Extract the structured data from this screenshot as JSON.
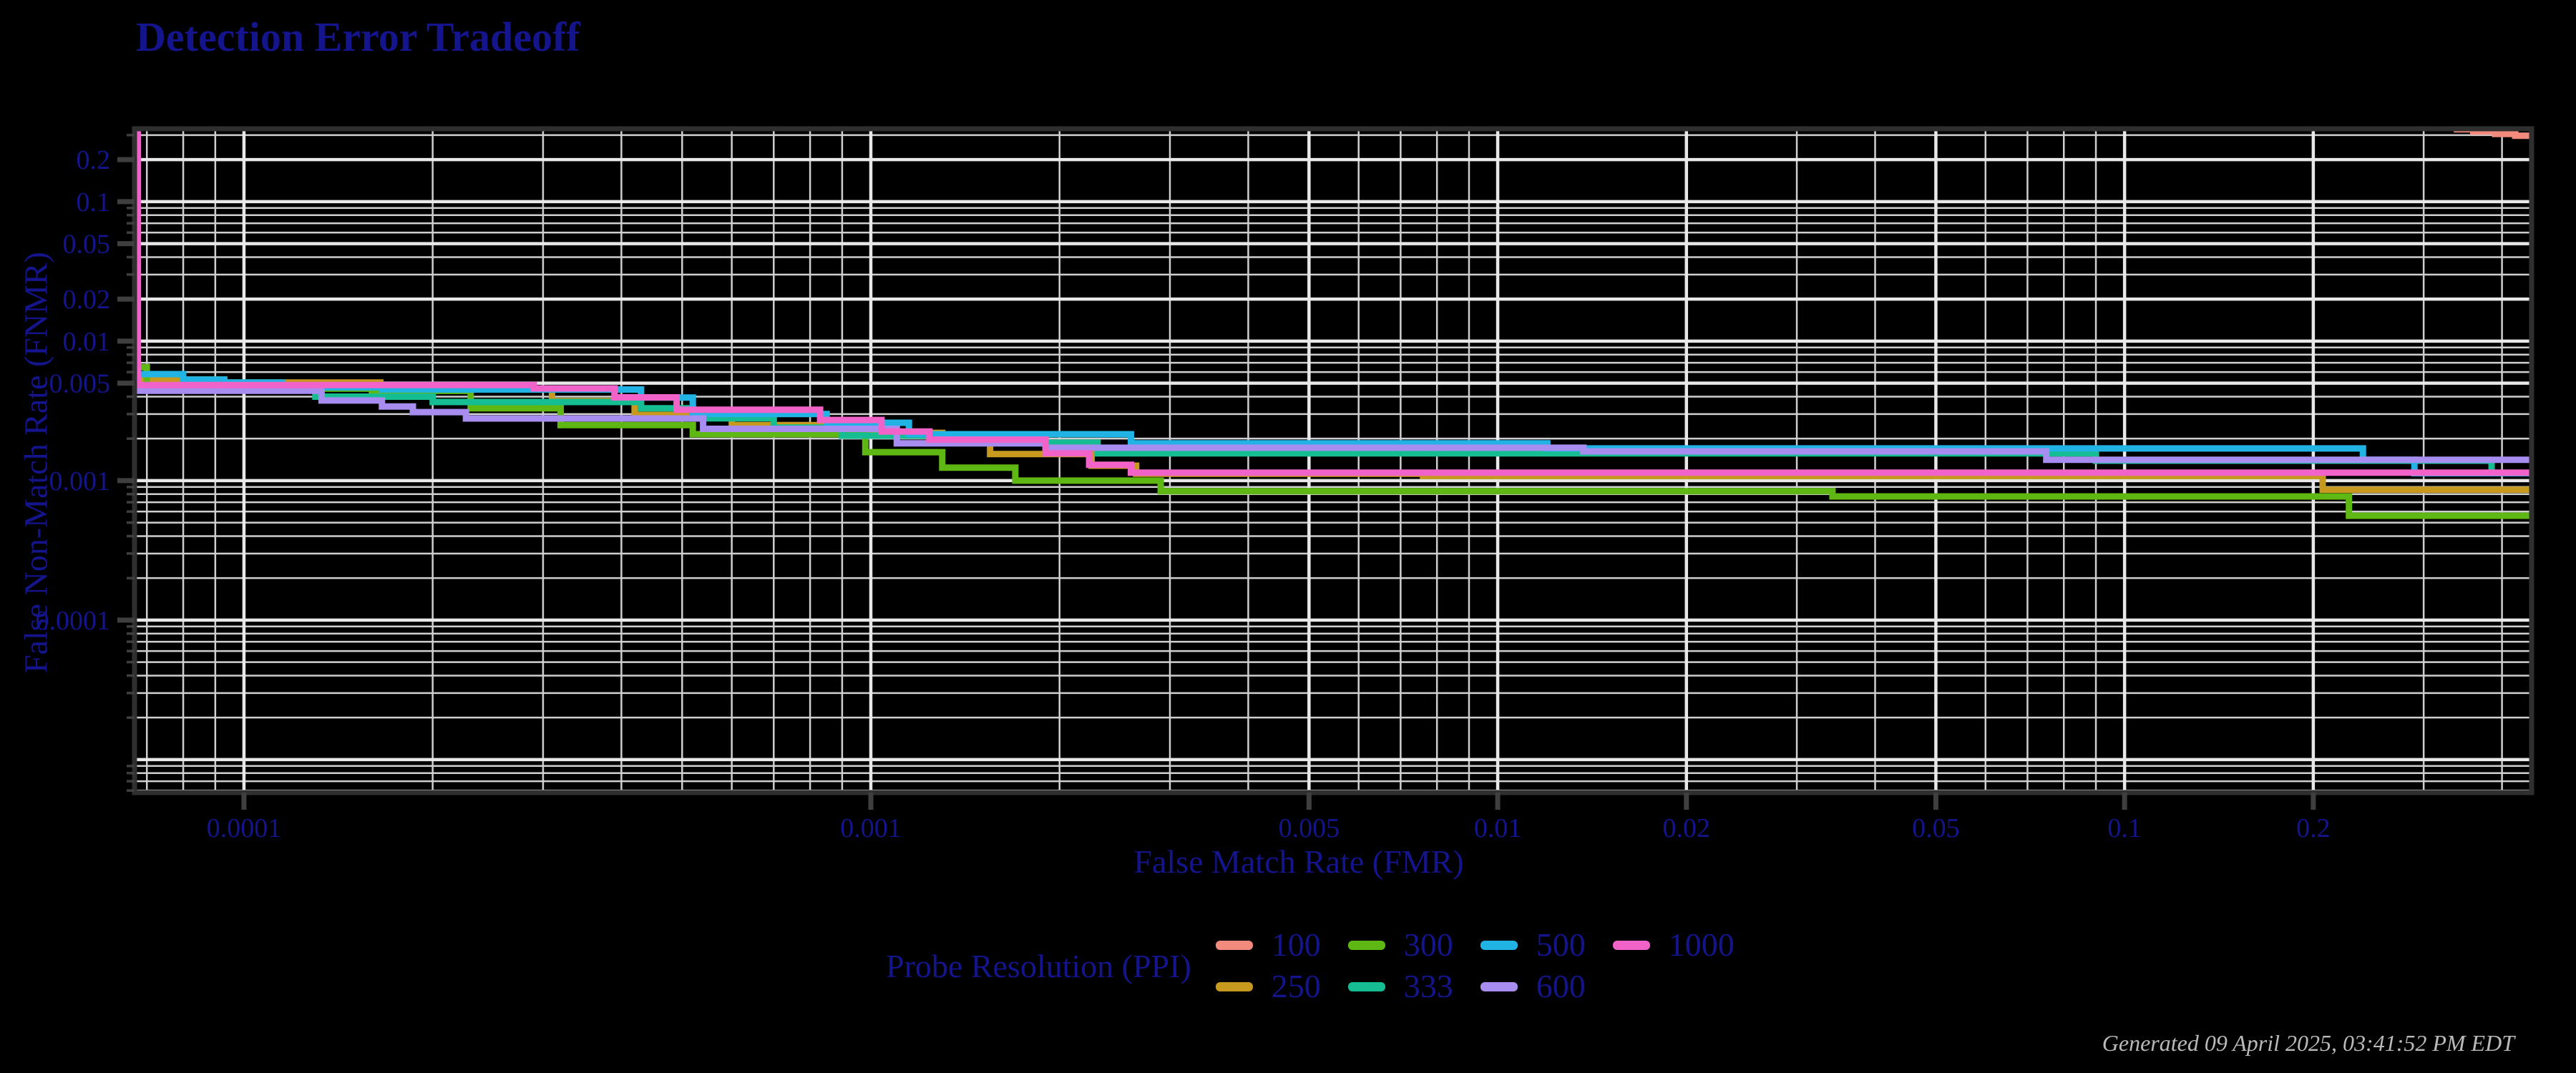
{
  "title": "Detection Error Tradeoff",
  "timestamp": "Generated 09 April 2025, 03:41:52 PM EDT",
  "colors": {
    "background": "#000000",
    "text_navy": "#14148C",
    "timestamp_gray": "#B9B9B9",
    "grid_minor": "#CFCFCF",
    "grid_major": "#E8E8E8",
    "spine": "#2F2F2F",
    "tick": "#3F3F3F"
  },
  "chart_data": {
    "type": "line",
    "subtype": "DET staircase (step-after)",
    "title": "Detection Error Tradeoff",
    "xlabel": "False Match Rate (FMR)",
    "ylabel": "False Non-Match Rate (FNMR)",
    "xscale": "log",
    "yscale": "log",
    "xlim": [
      6.69e-05,
      0.446
    ],
    "ylim": [
      5.8e-06,
      0.333
    ],
    "grid": "on (log minor + major), white gridlines on black",
    "legend_title": "Probe Resolution (PPI)",
    "legend_position": "below-plot-two-rows",
    "legend_rows": [
      [
        "100",
        "300",
        "500",
        "1000"
      ],
      [
        "250",
        "333",
        "600"
      ]
    ],
    "x_ticks": {
      "values": [
        0.0001,
        0.001,
        0.005,
        0.01,
        0.02,
        0.05,
        0.1,
        0.2
      ],
      "labels": [
        "0.0001",
        "0.001",
        "0.005",
        "0.01",
        "0.02",
        "0.05",
        "0.1",
        "0.2"
      ]
    },
    "y_ticks": {
      "values": [
        0.2,
        0.1,
        0.05,
        0.02,
        0.01,
        0.005,
        0.001,
        0.0001
      ],
      "labels": [
        "0.2",
        "0.1",
        "0.05",
        "0.02",
        "0.01",
        "0.005",
        "0.001",
        "0.0001"
      ]
    },
    "series": [
      {
        "name": "100",
        "color": "#F28B7D",
        "points": [
          [
            0.335,
            0.33
          ],
          [
            0.36,
            0.318
          ],
          [
            0.39,
            0.306
          ],
          [
            0.42,
            0.297
          ],
          [
            0.446,
            0.29
          ]
        ]
      },
      {
        "name": "250",
        "color": "#C7991F",
        "points": [
          [
            6.69e-05,
            0.0053
          ],
          [
            9.3e-05,
            0.00505
          ],
          [
            0.000165,
            0.00452
          ],
          [
            0.00031,
            0.00372
          ],
          [
            0.00042,
            0.00296
          ],
          [
            0.0006,
            0.0025
          ],
          [
            0.00099,
            0.0022
          ],
          [
            0.0013,
            0.0019
          ],
          [
            0.00155,
            0.00155
          ],
          [
            0.00225,
            0.00128
          ],
          [
            0.00265,
            0.00112
          ],
          [
            0.0076,
            0.00108
          ],
          [
            0.207,
            0.00086
          ]
        ]
      },
      {
        "name": "300",
        "color": "#5EB712",
        "points": [
          [
            6.69e-05,
            0.0065
          ],
          [
            7e-05,
            0.00457
          ],
          [
            0.00016,
            0.0044
          ],
          [
            0.00023,
            0.0033
          ],
          [
            0.00032,
            0.0025
          ],
          [
            0.00052,
            0.00215
          ],
          [
            0.00098,
            0.0016
          ],
          [
            0.0013,
            0.00124
          ],
          [
            0.0017,
            0.001
          ],
          [
            0.0029,
            0.00084
          ],
          [
            0.0342,
            0.00077
          ],
          [
            0.228,
            0.00056
          ]
        ]
      },
      {
        "name": "333",
        "color": "#16BD92",
        "points": [
          [
            6.69e-05,
            0.0047
          ],
          [
            0.00013,
            0.004
          ],
          [
            0.0002,
            0.00366
          ],
          [
            0.00043,
            0.0033
          ],
          [
            0.00052,
            0.0028
          ],
          [
            0.0007,
            0.0024
          ],
          [
            0.0009,
            0.0021
          ],
          [
            0.0019,
            0.00187
          ],
          [
            0.0023,
            0.00157
          ],
          [
            0.09,
            0.00139
          ],
          [
            0.385,
            0.00113
          ]
        ]
      },
      {
        "name": "500",
        "color": "#21B3E3",
        "points": [
          [
            6.69e-05,
            0.0058
          ],
          [
            8e-05,
            0.0053
          ],
          [
            9.3e-05,
            0.00505
          ],
          [
            0.000115,
            0.00466
          ],
          [
            0.000166,
            0.0045
          ],
          [
            0.00043,
            0.00394
          ],
          [
            0.00052,
            0.003
          ],
          [
            0.00085,
            0.0026
          ],
          [
            0.00115,
            0.00215
          ],
          [
            0.0026,
            0.00185
          ],
          [
            0.012,
            0.0017
          ],
          [
            0.24,
            0.00141
          ],
          [
            0.29,
            0.00113
          ]
        ]
      },
      {
        "name": "600",
        "color": "#A78DF0",
        "points": [
          [
            6.69e-05,
            0.00441
          ],
          [
            0.000133,
            0.00375
          ],
          [
            0.000166,
            0.0034
          ],
          [
            0.000186,
            0.0031
          ],
          [
            0.000226,
            0.00279
          ],
          [
            0.00054,
            0.00235
          ],
          [
            0.0011,
            0.00185
          ],
          [
            0.0019,
            0.00172
          ],
          [
            0.0137,
            0.00162
          ],
          [
            0.075,
            0.00141
          ]
        ]
      },
      {
        "name": "1000",
        "color": "#F163C8",
        "points": [
          [
            6.75e-05,
            0.33
          ],
          [
            6.77e-05,
            0.00484
          ],
          [
            0.00029,
            0.00458
          ],
          [
            0.00039,
            0.00395
          ],
          [
            0.00049,
            0.00322
          ],
          [
            0.00083,
            0.00272
          ],
          [
            0.00104,
            0.00225
          ],
          [
            0.00124,
            0.00197
          ],
          [
            0.0019,
            0.00157
          ],
          [
            0.00223,
            0.0013
          ],
          [
            0.0026,
            0.00114
          ]
        ]
      }
    ]
  }
}
